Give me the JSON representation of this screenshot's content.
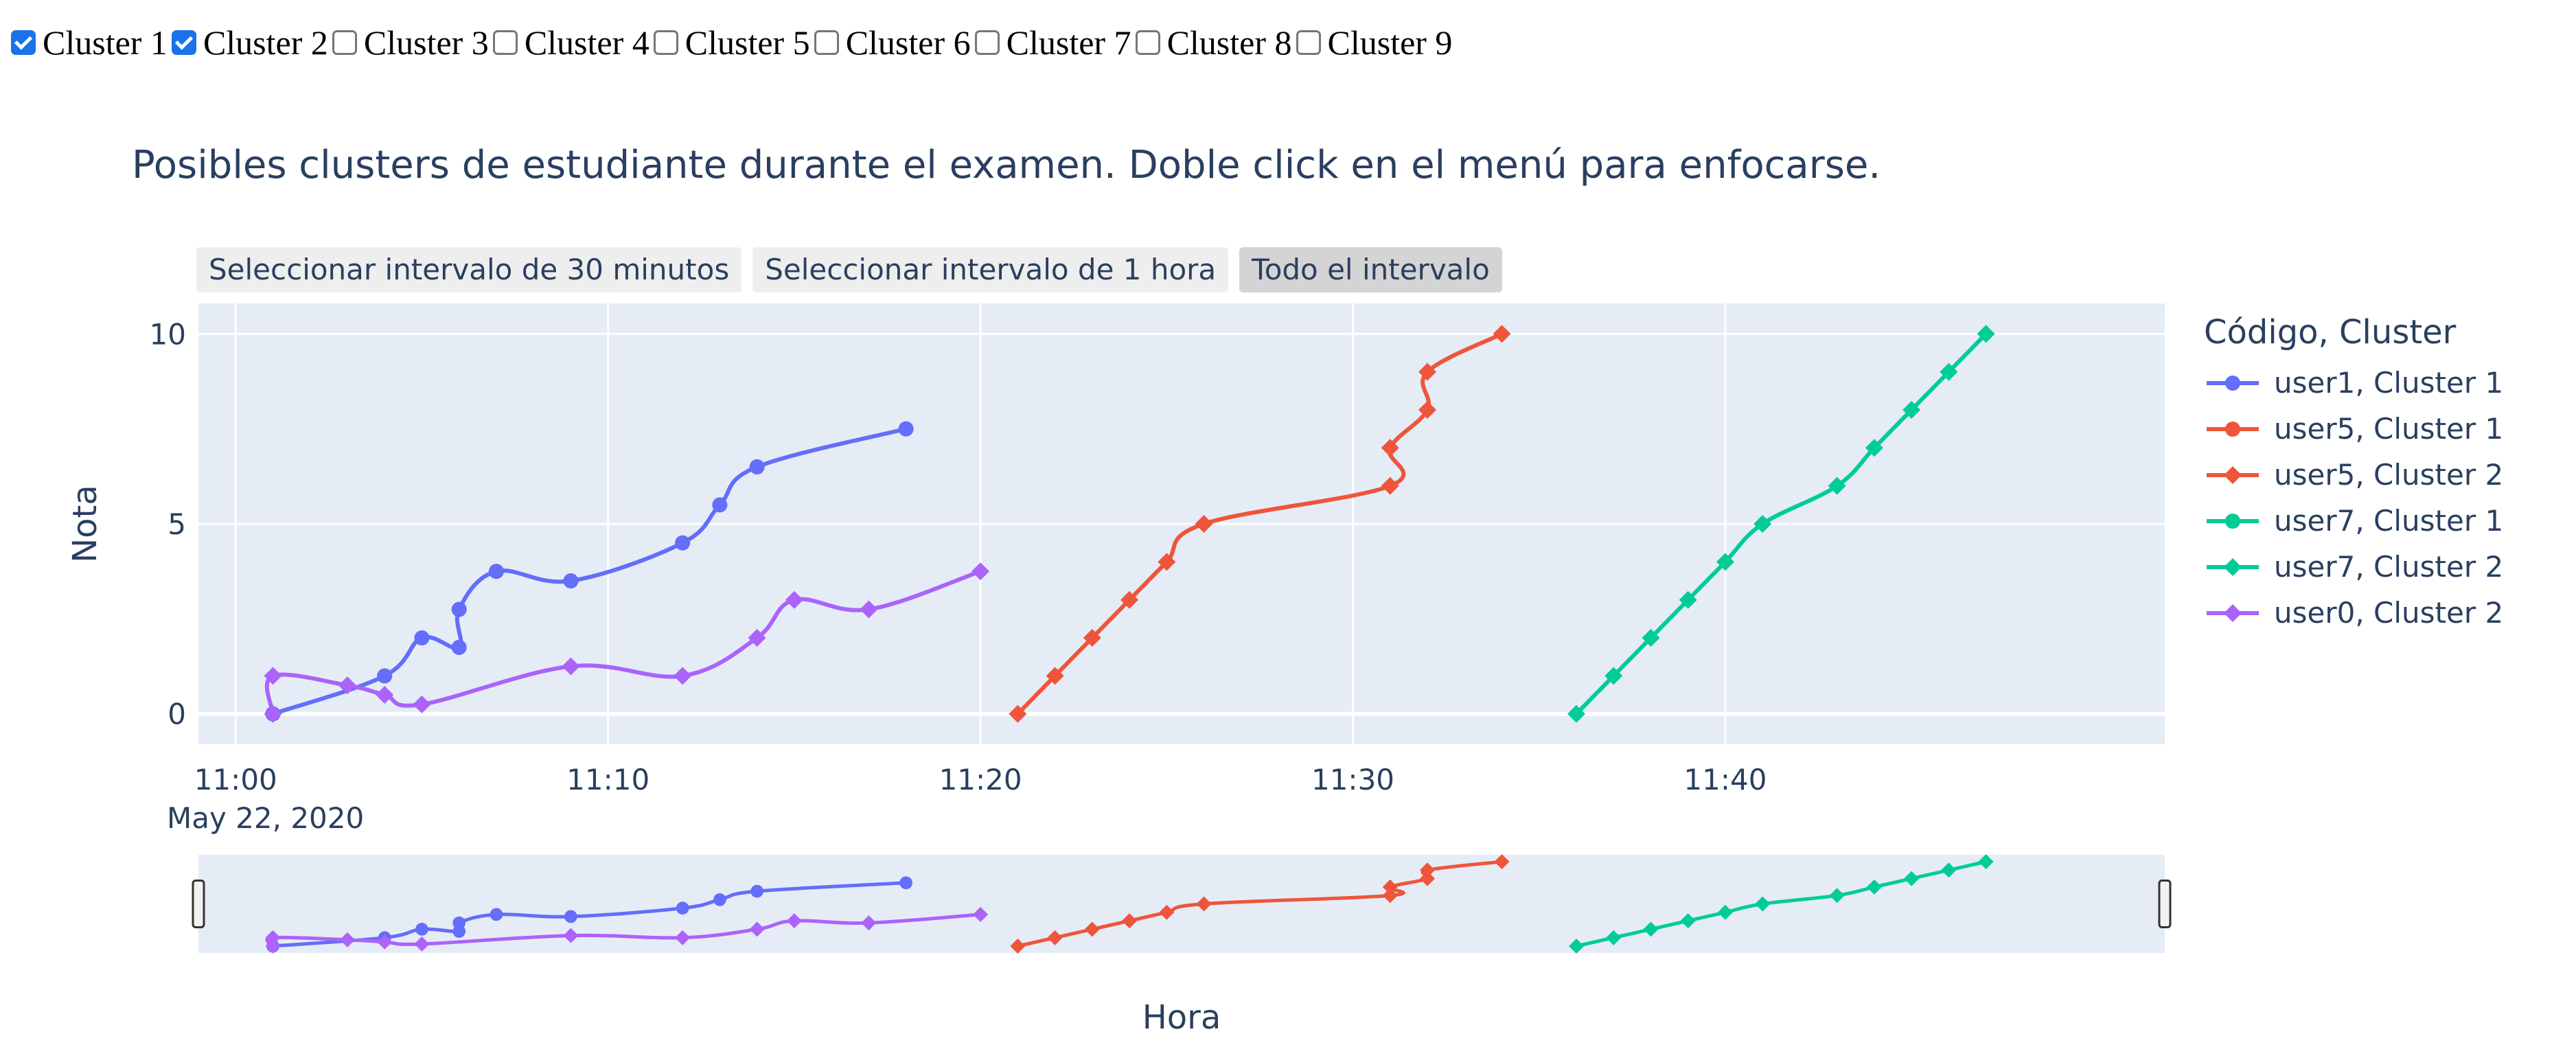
{
  "filters": [
    {
      "label": "Cluster 1",
      "checked": true
    },
    {
      "label": "Cluster 2",
      "checked": true
    },
    {
      "label": "Cluster 3",
      "checked": false
    },
    {
      "label": "Cluster 4",
      "checked": false
    },
    {
      "label": "Cluster 5",
      "checked": false
    },
    {
      "label": "Cluster 6",
      "checked": false
    },
    {
      "label": "Cluster 7",
      "checked": false
    },
    {
      "label": "Cluster 8",
      "checked": false
    },
    {
      "label": "Cluster 9",
      "checked": false
    }
  ],
  "range_buttons": [
    {
      "label": "Seleccionar intervalo de 30 minutos",
      "active": false
    },
    {
      "label": "Seleccionar intervalo de 1 hora",
      "active": false
    },
    {
      "label": "Todo el intervalo",
      "active": true
    }
  ],
  "chart_data": {
    "type": "line",
    "title": "Posibles clusters de estudiante durante el examen. Doble click en el menú para enfocarse.",
    "xlabel": "Hora",
    "ylabel": "Nota",
    "x_date_label": "May 22, 2020",
    "xlim": [
      "11:00",
      "11:50"
    ],
    "x_ticks": [
      "11:00",
      "11:10",
      "11:20",
      "11:30",
      "11:40"
    ],
    "ylim": [
      -0.8,
      10.8
    ],
    "y_ticks": [
      0,
      5,
      10
    ],
    "grid": true,
    "legend_title": "Código, Cluster",
    "legend_position": "right",
    "rangeslider": true,
    "series": [
      {
        "name": "user1, Cluster 1",
        "color": "#636efa",
        "marker": "circle",
        "x": [
          "11:01",
          "11:04",
          "11:05",
          "11:06",
          "11:06",
          "11:07",
          "11:09",
          "11:12",
          "11:13",
          "11:14",
          "11:18"
        ],
        "y": [
          0,
          1,
          2,
          1.75,
          2.75,
          3.75,
          3.5,
          4.5,
          5.5,
          6.5,
          7.5
        ]
      },
      {
        "name": "user5, Cluster 1",
        "color": "#ef553b",
        "marker": "circle",
        "x": [],
        "y": []
      },
      {
        "name": "user5, Cluster 2",
        "color": "#ef553b",
        "marker": "diamond",
        "x": [
          "11:21",
          "11:22",
          "11:23",
          "11:24",
          "11:25",
          "11:26",
          "11:31",
          "11:31",
          "11:32",
          "11:32",
          "11:34"
        ],
        "y": [
          0,
          1,
          2,
          3,
          4,
          5,
          6,
          7,
          8,
          9,
          10
        ]
      },
      {
        "name": "user7, Cluster 1",
        "color": "#00cc96",
        "marker": "circle",
        "x": [],
        "y": []
      },
      {
        "name": "user7, Cluster 2",
        "color": "#00cc96",
        "marker": "diamond",
        "x": [
          "11:36",
          "11:37",
          "11:38",
          "11:39",
          "11:40",
          "11:41",
          "11:43",
          "11:44",
          "11:45",
          "11:46",
          "11:47"
        ],
        "y": [
          0,
          1,
          2,
          3,
          4,
          5,
          6,
          7,
          8,
          9,
          10
        ]
      },
      {
        "name": "user0, Cluster 2",
        "color": "#ab63fa",
        "marker": "diamond",
        "x": [
          "11:01",
          "11:01",
          "11:03",
          "11:04",
          "11:05",
          "11:09",
          "11:12",
          "11:14",
          "11:15",
          "11:17",
          "11:20"
        ],
        "y": [
          0,
          1,
          0.75,
          0.5,
          0.25,
          1.25,
          1,
          2,
          3,
          2.75,
          3.75
        ]
      }
    ]
  }
}
